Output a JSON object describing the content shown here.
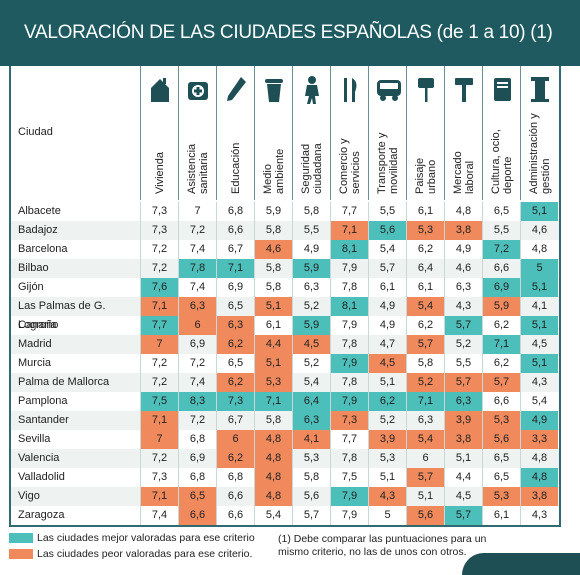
{
  "title": "VALORACIÓN DE LAS CIUDADES ESPAÑOLAS (de 1 a 10) (1)",
  "city_header": "Ciudad",
  "colors": {
    "best": "#4dbfba",
    "worst": "#f08a5d",
    "header": "#1e5a5f"
  },
  "chart_data": {
    "type": "table",
    "columns": [
      {
        "label": "Vivienda",
        "icon": "house-icon"
      },
      {
        "label": "Asistencia sanitaria",
        "icon": "first-aid-kit-icon"
      },
      {
        "label": "Educación",
        "icon": "pencil-icon"
      },
      {
        "label": "Medio ambiente",
        "icon": "trash-can-icon"
      },
      {
        "label": "Seguridad ciudadana",
        "icon": "police-officer-icon"
      },
      {
        "label": "Comercio y servicios",
        "icon": "fork-knife-icon"
      },
      {
        "label": "Transporte y movilidad",
        "icon": "bus-icon"
      },
      {
        "label": "Paisaje urbano",
        "icon": "sign-post-icon"
      },
      {
        "label": "Mercado laboral",
        "icon": "hammer-icon"
      },
      {
        "label": "Cultura, ocio, deporte",
        "icon": "book-icon"
      },
      {
        "label": "Administración y gestión",
        "icon": "column-icon"
      }
    ],
    "rows": [
      {
        "city": "Albacete",
        "values": [
          "7,3",
          "7",
          "6,8",
          "5,9",
          "5,8",
          "7,7",
          "5,5",
          "6,1",
          "4,8",
          "6,5",
          "5,1"
        ],
        "marks": [
          "",
          "",
          "",
          "",
          "",
          "",
          "",
          "",
          "",
          "",
          "hi"
        ]
      },
      {
        "city": "Badajoz",
        "values": [
          "7,3",
          "7,2",
          "6,6",
          "5,8",
          "5,5",
          "7,1",
          "5,6",
          "5,3",
          "3,8",
          "5,5",
          "4,6"
        ],
        "marks": [
          "",
          "",
          "",
          "",
          "",
          "lo",
          "hi",
          "lo",
          "lo",
          "",
          ""
        ]
      },
      {
        "city": "Barcelona",
        "values": [
          "7,2",
          "7,4",
          "6,7",
          "4,6",
          "4,9",
          "8,1",
          "5,4",
          "6,2",
          "4,9",
          "7,2",
          "4,8"
        ],
        "marks": [
          "",
          "",
          "",
          "lo",
          "",
          "hi",
          "",
          "",
          "",
          "hi",
          ""
        ]
      },
      {
        "city": "Bilbao",
        "values": [
          "7,2",
          "7,8",
          "7,1",
          "5,8",
          "5,9",
          "7,9",
          "5,7",
          "6,4",
          "4,6",
          "6,6",
          "5"
        ],
        "marks": [
          "",
          "hi",
          "hi",
          "",
          "hi",
          "",
          "",
          "",
          "",
          "",
          "hi"
        ]
      },
      {
        "city": "Gijón",
        "values": [
          "7,6",
          "7,4",
          "6,9",
          "5,8",
          "6,3",
          "7,8",
          "6,1",
          "6,1",
          "6,3",
          "6,9",
          "5,1"
        ],
        "marks": [
          "hi",
          "",
          "",
          "",
          "",
          "",
          "",
          "",
          "",
          "hi",
          "hi"
        ]
      },
      {
        "city": "Las Palmas de G. Canaria",
        "values": [
          "7,1",
          "6,3",
          "6,5",
          "5,1",
          "5,2",
          "8,1",
          "4,9",
          "5,4",
          "4,3",
          "5,9",
          "4,1"
        ],
        "marks": [
          "lo",
          "lo",
          "",
          "lo",
          "",
          "hi",
          "",
          "lo",
          "",
          "lo",
          ""
        ]
      },
      {
        "city": "Logroño",
        "values": [
          "7,7",
          "6",
          "6,3",
          "6,1",
          "5,9",
          "7,9",
          "4,9",
          "6,2",
          "5,7",
          "6,2",
          "5,1"
        ],
        "marks": [
          "hi",
          "lo",
          "lo",
          "",
          "hi",
          "",
          "",
          "",
          "hi",
          "",
          "hi"
        ]
      },
      {
        "city": "Madrid",
        "values": [
          "7",
          "6,9",
          "6,2",
          "4,4",
          "4,5",
          "7,8",
          "4,7",
          "5,7",
          "5,2",
          "7,1",
          "4,5"
        ],
        "marks": [
          "lo",
          "",
          "lo",
          "lo",
          "lo",
          "",
          "",
          "lo",
          "",
          "hi",
          ""
        ]
      },
      {
        "city": "Murcia",
        "values": [
          "7,2",
          "7,2",
          "6,5",
          "5,1",
          "5,2",
          "7,9",
          "4,5",
          "5,8",
          "5,5",
          "6,2",
          "5,1"
        ],
        "marks": [
          "",
          "",
          "",
          "lo",
          "",
          "hi",
          "lo",
          "",
          "",
          "",
          "hi"
        ]
      },
      {
        "city": "Palma de Mallorca",
        "values": [
          "7,2",
          "7,4",
          "6,2",
          "5,3",
          "5,4",
          "7,8",
          "5,1",
          "5,2",
          "5,7",
          "5,7",
          "4,3"
        ],
        "marks": [
          "",
          "",
          "lo",
          "lo",
          "",
          "",
          "",
          "lo",
          "lo",
          "lo",
          ""
        ]
      },
      {
        "city": "Pamplona",
        "values": [
          "7,5",
          "8,3",
          "7,3",
          "7,1",
          "6,4",
          "7,9",
          "6,2",
          "7,1",
          "6,3",
          "6,6",
          "5,4"
        ],
        "marks": [
          "hi",
          "hi",
          "hi",
          "hi",
          "hi",
          "hi",
          "hi",
          "hi",
          "hi",
          "",
          ""
        ]
      },
      {
        "city": "Santander",
        "values": [
          "7,1",
          "7,2",
          "6,7",
          "5,8",
          "6,3",
          "7,3",
          "5,2",
          "6,3",
          "3,9",
          "5,3",
          "4,9"
        ],
        "marks": [
          "lo",
          "",
          "",
          "",
          "hi",
          "lo",
          "",
          "",
          "lo",
          "lo",
          "hi"
        ]
      },
      {
        "city": "Sevilla",
        "values": [
          "7",
          "6,8",
          "6",
          "4,8",
          "4,1",
          "7,7",
          "3,9",
          "5,4",
          "3,8",
          "5,6",
          "3,3"
        ],
        "marks": [
          "lo",
          "",
          "lo",
          "lo",
          "lo",
          "",
          "lo",
          "lo",
          "lo",
          "lo",
          "lo"
        ]
      },
      {
        "city": "Valencia",
        "values": [
          "7,2",
          "6,9",
          "6,2",
          "4,8",
          "5,3",
          "7,8",
          "5,3",
          "6",
          "5,1",
          "6,5",
          "4,8"
        ],
        "marks": [
          "",
          "",
          "lo",
          "lo",
          "",
          "",
          "",
          "",
          "",
          "",
          ""
        ]
      },
      {
        "city": "Valladolid",
        "values": [
          "7,3",
          "6,8",
          "6,8",
          "4,8",
          "5,8",
          "7,5",
          "5,1",
          "5,7",
          "4,4",
          "6,5",
          "4,8"
        ],
        "marks": [
          "",
          "",
          "",
          "lo",
          "",
          "",
          "",
          "lo",
          "",
          "",
          "hi"
        ]
      },
      {
        "city": "Vigo",
        "values": [
          "7,1",
          "6,5",
          "6,6",
          "4,8",
          "5,6",
          "7,9",
          "4,3",
          "5,1",
          "4,5",
          "5,3",
          "3,8"
        ],
        "marks": [
          "lo",
          "lo",
          "",
          "lo",
          "",
          "hi",
          "lo",
          "",
          "",
          "lo",
          "lo"
        ]
      },
      {
        "city": "Zaragoza",
        "values": [
          "7,4",
          "6,6",
          "6,6",
          "5,4",
          "5,7",
          "7,9",
          "5",
          "5,6",
          "5,7",
          "6,1",
          "4,3"
        ],
        "marks": [
          "",
          "lo",
          "",
          "",
          "",
          "",
          "",
          "lo",
          "hi",
          "",
          ""
        ]
      }
    ]
  },
  "legend": {
    "best": "Las ciudades mejor valoradas para ese criterio",
    "worst": "Las ciudades peor valoradas para ese criterio."
  },
  "note": "(1) Debe comparar las puntuaciones para un mismo criterio, no las de unos con otros."
}
